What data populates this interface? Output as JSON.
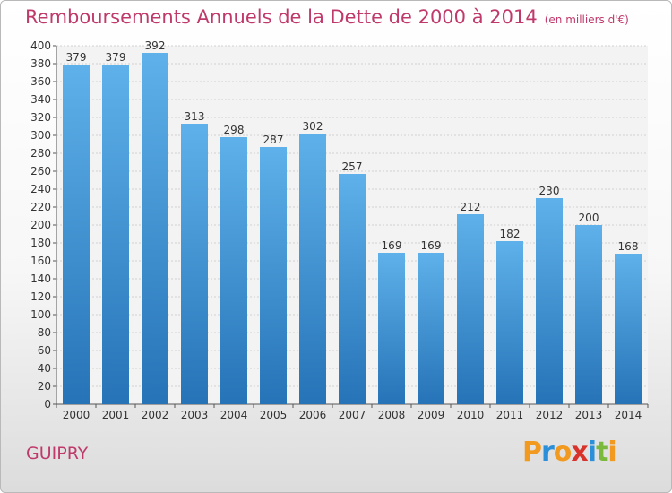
{
  "chart_data": {
    "type": "bar",
    "title": "Remboursements Annuels de la Dette de 2000 à 2014",
    "subtitle": "(en milliers d'€)",
    "categories": [
      "2000",
      "2001",
      "2002",
      "2003",
      "2004",
      "2005",
      "2006",
      "2007",
      "2008",
      "2009",
      "2010",
      "2011",
      "2012",
      "2013",
      "2014"
    ],
    "values": [
      379,
      379,
      392,
      313,
      298,
      287,
      302,
      257,
      169,
      169,
      212,
      182,
      230,
      200,
      168
    ],
    "ylim": [
      0,
      400
    ],
    "ytick_step": 20,
    "grid": true,
    "bar_color_top": "#5eb1ea",
    "bar_color_bottom": "#2673b7"
  },
  "footer": {
    "city": "GUIPRY",
    "logo_text": "Proxiti",
    "logo_colors": [
      "#f29a1f",
      "#2b8fd9",
      "#f29a1f",
      "#d8322b",
      "#2b8fd9",
      "#7ab93b",
      "#f29a1f"
    ]
  },
  "colors": {
    "title": "#c0396b"
  }
}
